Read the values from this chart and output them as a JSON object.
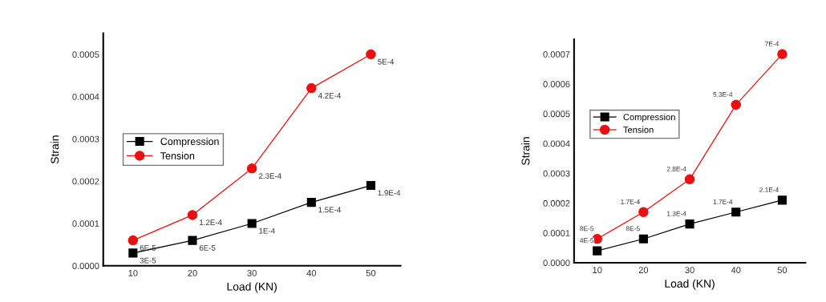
{
  "chart_data": [
    {
      "type": "line",
      "xlabel": "Load (KN)",
      "ylabel": "Strain",
      "x": [
        10,
        20,
        30,
        40,
        50
      ],
      "xlim": [
        5,
        55
      ],
      "xticks": [
        10,
        20,
        30,
        40,
        50
      ],
      "ylim": [
        0,
        0.00055
      ],
      "yticks": [
        {
          "value": 0,
          "label": "0.0000"
        },
        {
          "value": 0.0001,
          "label": "0.0001"
        },
        {
          "value": 0.0002,
          "label": "0.0002"
        },
        {
          "value": 0.0003,
          "label": "0.0003"
        },
        {
          "value": 0.0004,
          "label": "0.0004"
        },
        {
          "value": 0.0005,
          "label": "0.0005"
        }
      ],
      "legend": "left",
      "grid": false,
      "line_style": "solid",
      "series": [
        {
          "name": "Compression",
          "color": "#000000",
          "marker": "square",
          "values": [
            3e-05,
            6e-05,
            0.0001,
            0.00015,
            0.00019
          ],
          "value_labels": [
            "3E-5",
            "6E-5",
            "1E-4",
            "1.5E-4",
            "1.9E-4"
          ]
        },
        {
          "name": "Tension",
          "color": "#e81010",
          "marker": "circle",
          "values": [
            6e-05,
            0.00012,
            0.00023,
            0.00042,
            0.0005
          ],
          "value_labels": [
            "6E-5",
            "1.2E-4",
            "2.3E-4",
            "4.2E-4",
            "5E-4"
          ]
        }
      ]
    },
    {
      "type": "line",
      "xlabel": "Load (KN)",
      "ylabel": "Strain",
      "x": [
        10,
        20,
        30,
        40,
        50
      ],
      "xlim": [
        5,
        55
      ],
      "xticks": [
        10,
        20,
        30,
        40,
        50
      ],
      "ylim": [
        0,
        0.00075
      ],
      "yticks": [
        {
          "value": 0,
          "label": "0.0000"
        },
        {
          "value": 0.0001,
          "label": "0.0001"
        },
        {
          "value": 0.0002,
          "label": "0.0002"
        },
        {
          "value": 0.0003,
          "label": "0.0003"
        },
        {
          "value": 0.0004,
          "label": "0.0004"
        },
        {
          "value": 0.0005,
          "label": "0.0005"
        },
        {
          "value": 0.0006,
          "label": "0.0006"
        },
        {
          "value": 0.0007,
          "label": "0.0007"
        }
      ],
      "legend": "left",
      "grid": false,
      "line_style": "solid",
      "series": [
        {
          "name": "Compression",
          "color": "#000000",
          "marker": "square",
          "values": [
            4e-05,
            8e-05,
            0.00013,
            0.00017,
            0.00021
          ],
          "value_labels": [
            "4E-5",
            "8E-5",
            "1.3E-4",
            "1.7E-4",
            "2.1E-4"
          ]
        },
        {
          "name": "Tension",
          "color": "#e81010",
          "marker": "circle",
          "values": [
            8e-05,
            0.00017,
            0.00028,
            0.00053,
            0.0007
          ],
          "value_labels": [
            "8E-5",
            "1.7E-4",
            "2.8E-4",
            "5.3E-4",
            "7E-4"
          ]
        }
      ]
    }
  ]
}
